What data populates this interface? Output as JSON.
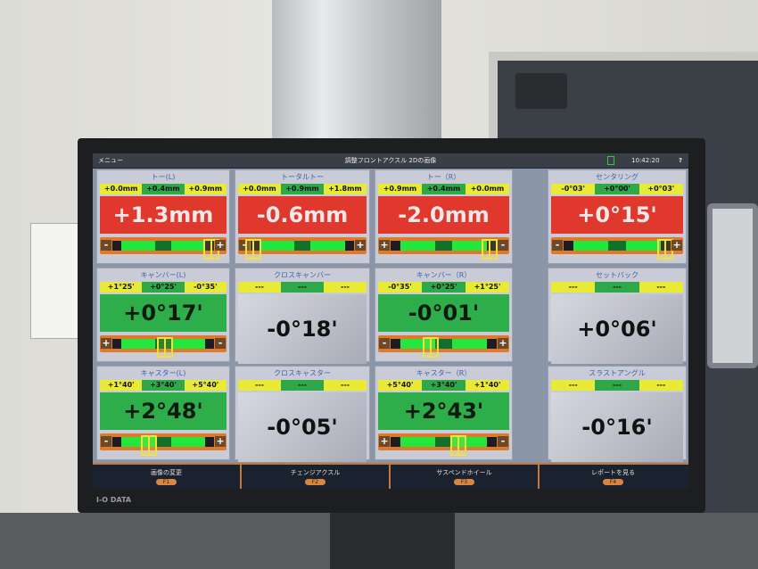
{
  "window": {
    "menu": "メニュー",
    "title": "調整フロントアクスル 2Dの画像",
    "time": "10:42:20",
    "help": "?"
  },
  "monitor_brand": "I-O DATA",
  "colors": {
    "red": "#e0382c",
    "green": "#2ead4b",
    "yellow": "#e9ea36",
    "orange": "#e07a2a"
  },
  "panels": [
    {
      "title": "トー(L)",
      "range": [
        "+0.0mm",
        "+0.4mm",
        "+0.9mm"
      ],
      "value": "+1.3mm",
      "status": "red",
      "slider": {
        "left": "-",
        "right": "+",
        "marker": 0.97
      }
    },
    {
      "title": "トータルトー",
      "range": [
        "+0.0mm",
        "+0.9mm",
        "+1.8mm"
      ],
      "value": "-0.6mm",
      "status": "red",
      "slider": {
        "left": "-",
        "right": "+",
        "marker": 0.03
      }
    },
    {
      "title": "トー（R）",
      "range": [
        "+0.9mm",
        "+0.4mm",
        "+0.0mm"
      ],
      "value": "-2.0mm",
      "status": "red",
      "slider": {
        "left": "+",
        "right": "-",
        "marker": 0.93
      }
    },
    {
      "title": "センタリング",
      "range": [
        "-0°03'",
        "+0°00'",
        "+0°03'"
      ],
      "value": "+0°15'",
      "status": "red",
      "slider": {
        "left": "-",
        "right": "+",
        "marker": 0.95
      }
    },
    {
      "title": "キャンバー(L)",
      "range": [
        "+1°25'",
        "+0°25'",
        "-0°35'"
      ],
      "value": "+0°17'",
      "status": "green",
      "slider": {
        "left": "+",
        "right": "-",
        "marker": 0.52
      }
    },
    {
      "title": "クロスキャンバー",
      "range": [
        "---",
        "---",
        "---"
      ],
      "value": "-0°18'",
      "status": "gray"
    },
    {
      "title": "キャンバー（R）",
      "range": [
        "-0°35'",
        "+0°25'",
        "+1°25'"
      ],
      "value": "-0°01'",
      "status": "green",
      "slider": {
        "left": "-",
        "right": "+",
        "marker": 0.38
      }
    },
    {
      "title": "セットバック",
      "range": [
        "---",
        "---",
        "---"
      ],
      "value": "+0°06'",
      "status": "gray"
    },
    {
      "title": "キャスター(L)",
      "range": [
        "+1°40'",
        "+3°40'",
        "+5°40'"
      ],
      "value": "+2°48'",
      "status": "green",
      "slider": {
        "left": "-",
        "right": "+",
        "marker": 0.36
      }
    },
    {
      "title": "クロスキャスター",
      "range": [
        "---",
        "---",
        "---"
      ],
      "value": "-0°05'",
      "status": "gray"
    },
    {
      "title": "キャスター（R）",
      "range": [
        "+5°40'",
        "+3°40'",
        "+1°40'"
      ],
      "value": "+2°43'",
      "status": "green",
      "slider": {
        "left": "+",
        "right": "-",
        "marker": 0.64
      }
    },
    {
      "title": "スラストアングル",
      "range": [
        "---",
        "---",
        "---"
      ],
      "value": "-0°16'",
      "status": "gray"
    }
  ],
  "footer": [
    {
      "label": "画像の変更",
      "key": "F1"
    },
    {
      "label": "チェンジアクスル",
      "key": "F2"
    },
    {
      "label": "サスペンドホイール",
      "key": "F3"
    },
    {
      "label": "レポートを見る",
      "key": "F4"
    }
  ]
}
